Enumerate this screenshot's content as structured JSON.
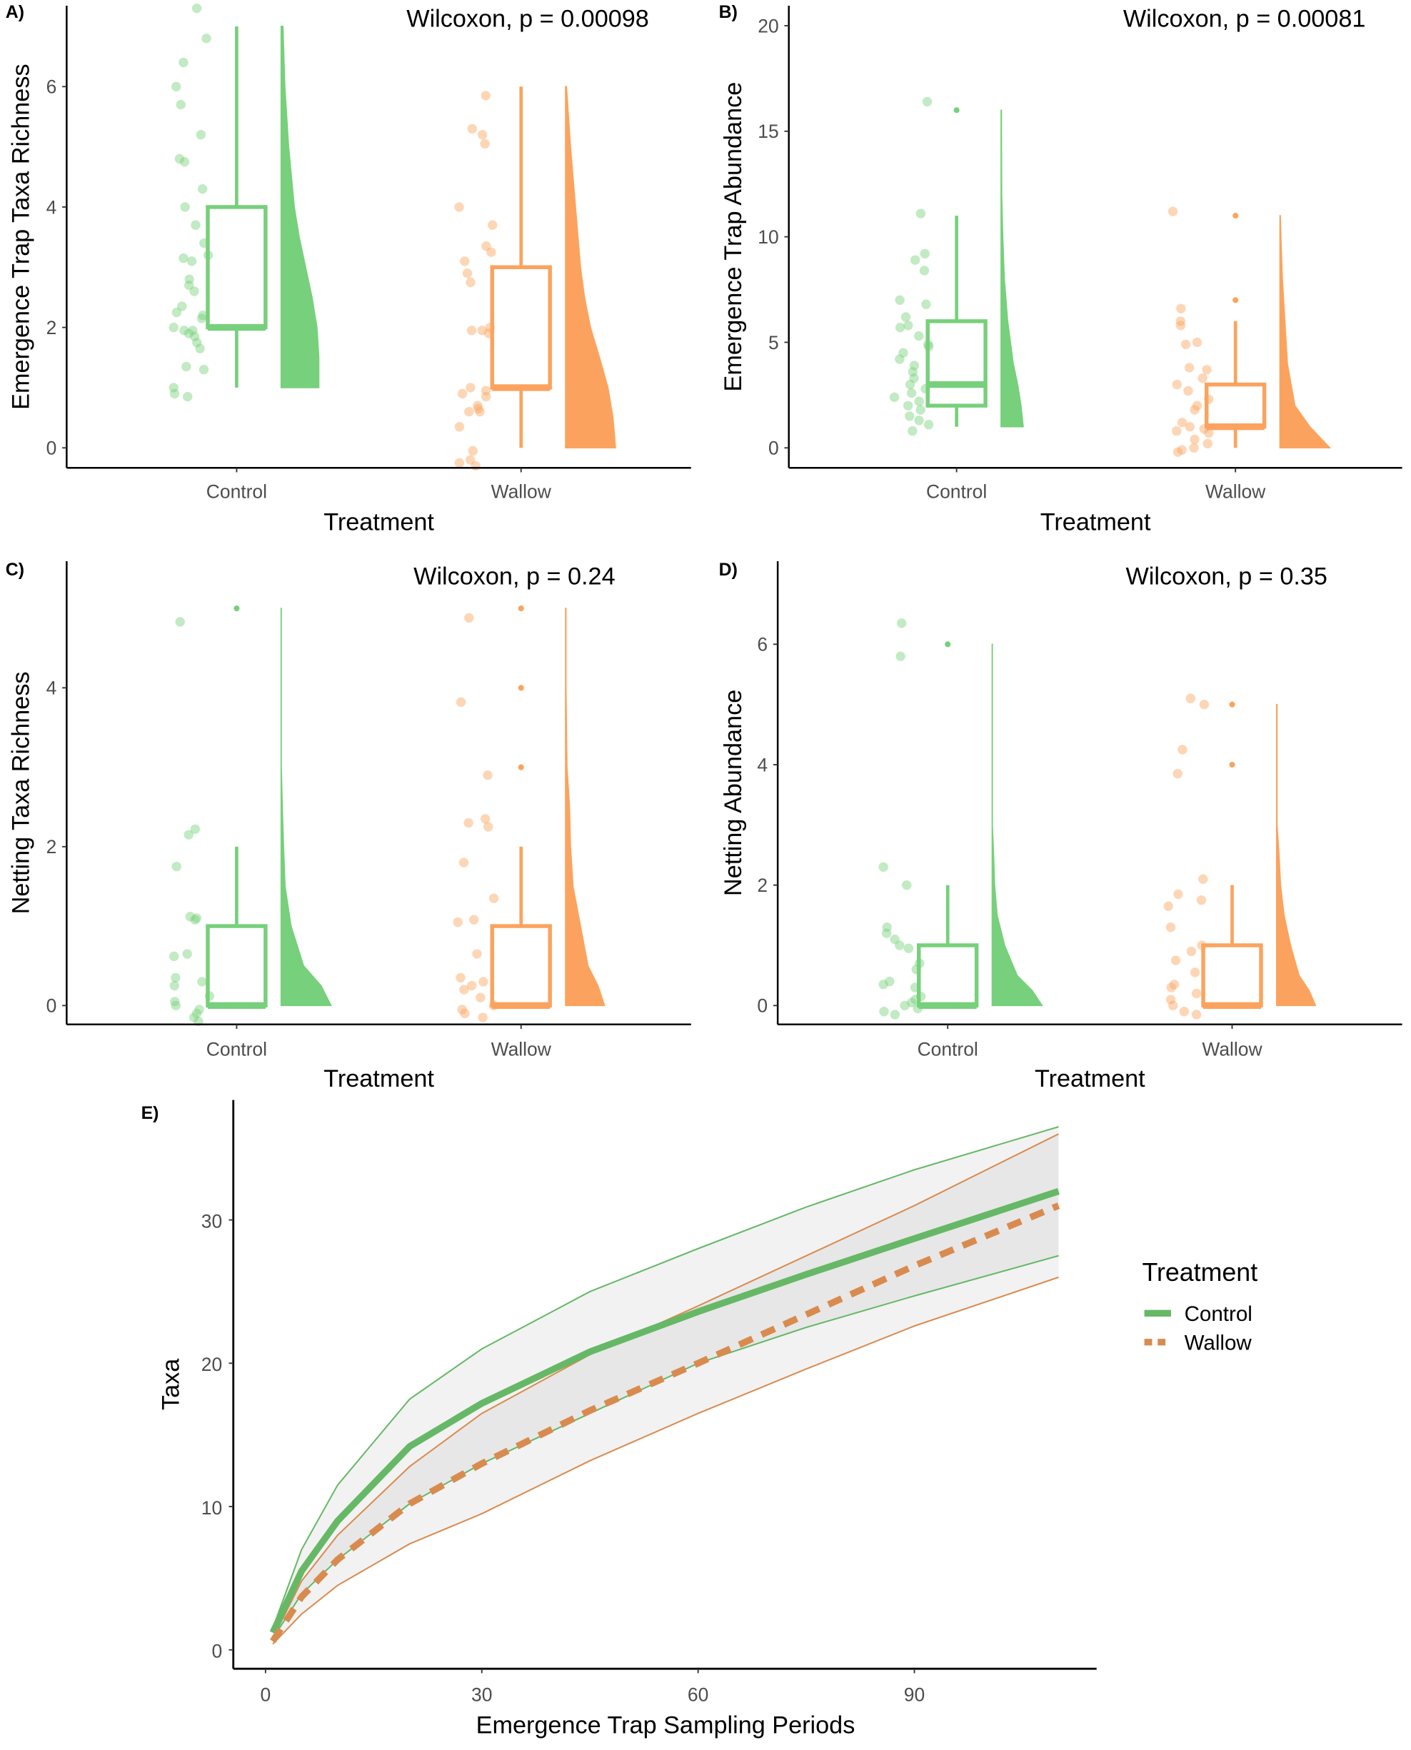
{
  "colors": {
    "control": "#77D07B",
    "wallow": "#FBA35E",
    "control_curve": "#66B866",
    "wallow_curve": "#D98B4F",
    "ci_fill": "#BDBDBD"
  },
  "chart_data": [
    {
      "id": "A",
      "type": "raincloud",
      "panel_label": "A)",
      "annotation": "Wilcoxon, p = 0.00098",
      "xlabel": "Treatment",
      "ylabel": "Emergence Trap Taxa Richness",
      "categories": [
        "Control",
        "Wallow"
      ],
      "yticks": [
        0,
        2,
        4,
        6
      ],
      "ylim": [
        -0.33,
        7.4
      ],
      "boxes": [
        {
          "min": 1,
          "q1": 2,
          "median": 2,
          "q3": 4,
          "max": 7,
          "outliers": []
        },
        {
          "min": 0,
          "q1": 1,
          "median": 1,
          "q3": 3,
          "max": 6,
          "outliers": []
        }
      ],
      "points": [
        [
          7.3,
          6.8,
          6.4,
          6.0,
          5.7,
          5.2,
          4.8,
          4.75,
          4.3,
          4.0,
          3.7,
          3.4,
          3.2,
          3.1,
          3.15,
          2.8,
          2.7,
          2.6,
          2.35,
          2.2,
          2.25,
          2.15,
          2.0,
          1.95,
          1.9,
          1.95,
          1.85,
          1.75,
          1.65,
          1.35,
          1.3,
          1.0,
          0.9,
          0.85
        ],
        [
          5.85,
          5.3,
          5.2,
          5.05,
          4.0,
          3.7,
          3.35,
          3.25,
          3.1,
          2.9,
          2.75,
          2.0,
          1.95,
          1.9,
          1.95,
          1.0,
          0.95,
          0.9,
          0.85,
          0.7,
          0.65,
          0.6,
          0.6,
          0.35,
          -0.05,
          -0.2,
          -0.25,
          -0.3
        ]
      ],
      "density": [
        [
          [
            1,
            1.0
          ],
          [
            1.5,
            1.0
          ],
          [
            2,
            0.95
          ],
          [
            2.5,
            0.82
          ],
          [
            3,
            0.65
          ],
          [
            3.5,
            0.48
          ],
          [
            4,
            0.35
          ],
          [
            5,
            0.2
          ],
          [
            6,
            0.1
          ],
          [
            7,
            0.05
          ]
        ],
        [
          [
            0,
            1.0
          ],
          [
            0.5,
            0.95
          ],
          [
            1,
            0.85
          ],
          [
            1.5,
            0.68
          ],
          [
            2,
            0.5
          ],
          [
            2.5,
            0.38
          ],
          [
            3,
            0.3
          ],
          [
            4,
            0.2
          ],
          [
            5,
            0.1
          ],
          [
            6,
            0.02
          ]
        ]
      ]
    },
    {
      "id": "B",
      "type": "raincloud",
      "panel_label": "B)",
      "annotation": "Wilcoxon, p = 0.00081",
      "xlabel": "Treatment",
      "ylabel": "Emergence Trap  Abundance",
      "categories": [
        "Control",
        "Wallow"
      ],
      "yticks": [
        0,
        5,
        10,
        15,
        20
      ],
      "ylim": [
        -0.9,
        20.9
      ],
      "boxes": [
        {
          "min": 1,
          "q1": 2,
          "median": 3,
          "q3": 6,
          "max": 11,
          "outliers": [
            16
          ]
        },
        {
          "min": 0,
          "q1": 1,
          "median": 1,
          "q3": 3,
          "max": 6,
          "outliers": [
            7,
            11
          ]
        }
      ],
      "points": [
        [
          16.4,
          11.1,
          9.2,
          8.9,
          8.4,
          7.0,
          6.8,
          6.2,
          5.8,
          5.7,
          5.3,
          4.9,
          4.8,
          4.5,
          4.2,
          3.9,
          3.6,
          3.3,
          3.0,
          2.8,
          2.6,
          2.4,
          2.2,
          2.0,
          1.8,
          1.5,
          1.3,
          1.1,
          0.8
        ],
        [
          11.2,
          6.6,
          6.0,
          5.8,
          5.0,
          4.9,
          3.8,
          3.7,
          3.3,
          3.0,
          2.7,
          2.3,
          2.0,
          1.8,
          1.2,
          1.0,
          0.9,
          0.8,
          0.7,
          0.4,
          0.2,
          0.0,
          -0.1,
          -0.2
        ]
      ],
      "density": [
        [
          [
            1,
            1.0
          ],
          [
            2,
            0.9
          ],
          [
            3,
            0.75
          ],
          [
            4,
            0.55
          ],
          [
            6,
            0.3
          ],
          [
            8,
            0.15
          ],
          [
            10,
            0.08
          ],
          [
            12,
            0.03
          ],
          [
            16,
            0.02
          ]
        ],
        [
          [
            0,
            1.0
          ],
          [
            0.5,
            0.8
          ],
          [
            1,
            0.6
          ],
          [
            2,
            0.3
          ],
          [
            4,
            0.15
          ],
          [
            6,
            0.1
          ],
          [
            8,
            0.05
          ],
          [
            10,
            0.02
          ],
          [
            11,
            0.01
          ]
        ]
      ]
    },
    {
      "id": "C",
      "type": "raincloud",
      "panel_label": "C)",
      "annotation": "Wilcoxon, p = 0.24",
      "xlabel": "Treatment",
      "ylabel": "Netting Taxa Richness",
      "categories": [
        "Control",
        "Wallow"
      ],
      "yticks": [
        0,
        2,
        4
      ],
      "ylim": [
        -0.24,
        5.6
      ],
      "boxes": [
        {
          "min": 0,
          "q1": 0,
          "median": 0,
          "q3": 1,
          "max": 2,
          "outliers": [
            5
          ]
        },
        {
          "min": 0,
          "q1": 0,
          "median": 0,
          "q3": 1,
          "max": 2,
          "outliers": [
            3,
            4,
            5
          ]
        }
      ],
      "points": [
        [
          4.83,
          2.22,
          2.15,
          1.75,
          1.12,
          1.1,
          1.08,
          0.65,
          0.62,
          0.35,
          0.3,
          0.25,
          0.12,
          0.05,
          0.0,
          -0.05,
          -0.1,
          -0.15,
          -0.2
        ],
        [
          4.88,
          3.82,
          2.9,
          2.35,
          2.3,
          2.25,
          1.8,
          1.35,
          1.08,
          1.05,
          0.65,
          0.35,
          0.3,
          0.25,
          0.2,
          0.1,
          0.0,
          -0.05,
          -0.1,
          -0.15
        ]
      ],
      "density": [
        [
          [
            0,
            1.0
          ],
          [
            0.25,
            0.8
          ],
          [
            0.5,
            0.45
          ],
          [
            1,
            0.2
          ],
          [
            1.5,
            0.08
          ],
          [
            2,
            0.05
          ],
          [
            2.4,
            0.03
          ],
          [
            3,
            0.005
          ],
          [
            5,
            0.005
          ]
        ],
        [
          [
            0,
            0.78
          ],
          [
            0.25,
            0.65
          ],
          [
            0.5,
            0.45
          ],
          [
            1,
            0.3
          ],
          [
            1.5,
            0.15
          ],
          [
            2,
            0.1
          ],
          [
            2.5,
            0.08
          ],
          [
            3,
            0.03
          ],
          [
            4,
            0.01
          ],
          [
            5,
            0.01
          ]
        ]
      ]
    },
    {
      "id": "D",
      "type": "raincloud",
      "panel_label": "D)",
      "annotation": "Wilcoxon, p = 0.35",
      "xlabel": "Treatment",
      "ylabel": "Netting Abundance",
      "categories": [
        "Control",
        "Wallow"
      ],
      "yticks": [
        0,
        2,
        4,
        6
      ],
      "ylim": [
        -0.3,
        7.3
      ],
      "boxes": [
        {
          "min": 0,
          "q1": 0,
          "median": 0,
          "q3": 1,
          "max": 2,
          "outliers": [
            6
          ]
        },
        {
          "min": 0,
          "q1": 0,
          "median": 0,
          "q3": 1,
          "max": 2,
          "outliers": [
            4,
            5
          ]
        }
      ],
      "points": [
        [
          6.35,
          5.8,
          2.3,
          2.0,
          1.3,
          1.2,
          1.1,
          1.0,
          0.95,
          0.7,
          0.6,
          0.4,
          0.35,
          0.3,
          0.15,
          0.1,
          0.05,
          0.0,
          -0.05,
          -0.1,
          -0.15
        ],
        [
          5.1,
          5.0,
          4.25,
          3.85,
          2.1,
          1.85,
          1.75,
          1.65,
          1.3,
          1.0,
          0.9,
          0.75,
          0.55,
          0.35,
          0.3,
          0.2,
          0.1,
          0.0,
          -0.1,
          -0.15
        ]
      ],
      "density": [
        [
          [
            0,
            1.0
          ],
          [
            0.25,
            0.8
          ],
          [
            0.5,
            0.5
          ],
          [
            1,
            0.25
          ],
          [
            1.5,
            0.1
          ],
          [
            2,
            0.05
          ],
          [
            2.5,
            0.03
          ],
          [
            3,
            0.005
          ],
          [
            6,
            0.005
          ]
        ],
        [
          [
            0,
            0.78
          ],
          [
            0.25,
            0.65
          ],
          [
            0.5,
            0.45
          ],
          [
            1,
            0.28
          ],
          [
            1.5,
            0.15
          ],
          [
            2,
            0.08
          ],
          [
            2.5,
            0.05
          ],
          [
            3,
            0.01
          ],
          [
            5,
            0.01
          ]
        ]
      ]
    },
    {
      "id": "E",
      "type": "line",
      "panel_label": "E)",
      "xlabel": "Emergence Trap Sampling Periods",
      "ylabel": "Taxa",
      "xticks": [
        0,
        30,
        60,
        90
      ],
      "yticks": [
        0,
        10,
        20,
        30
      ],
      "xlim": [
        -4.5,
        115
      ],
      "ylim": [
        -1.3,
        38.3
      ],
      "legend": {
        "title": "Treatment",
        "position": "right"
      },
      "x": [
        1,
        5,
        10,
        20,
        30,
        45,
        60,
        75,
        90,
        110
      ],
      "series": [
        {
          "name": "Control",
          "style": "solid",
          "values": [
            1.2,
            5.5,
            9.0,
            14.2,
            17.2,
            20.8,
            23.6,
            26.2,
            28.7,
            32.0
          ],
          "upper": [
            1.5,
            7.0,
            11.5,
            17.5,
            21.0,
            25.0,
            28.0,
            30.9,
            33.5,
            36.5
          ],
          "lower": [
            0.8,
            3.9,
            6.3,
            10.2,
            13.0,
            16.5,
            20.0,
            22.5,
            24.7,
            27.5
          ]
        },
        {
          "name": "Wallow",
          "style": "dashed",
          "values": [
            0.6,
            3.7,
            6.3,
            10.2,
            13.0,
            16.7,
            20.0,
            23.4,
            26.8,
            31.0
          ],
          "upper": [
            0.8,
            4.8,
            8.0,
            12.8,
            16.5,
            20.6,
            24.0,
            27.5,
            31.0,
            36.0
          ],
          "lower": [
            0.4,
            2.5,
            4.5,
            7.4,
            9.5,
            13.2,
            16.5,
            19.6,
            22.6,
            26.0
          ]
        }
      ]
    }
  ]
}
